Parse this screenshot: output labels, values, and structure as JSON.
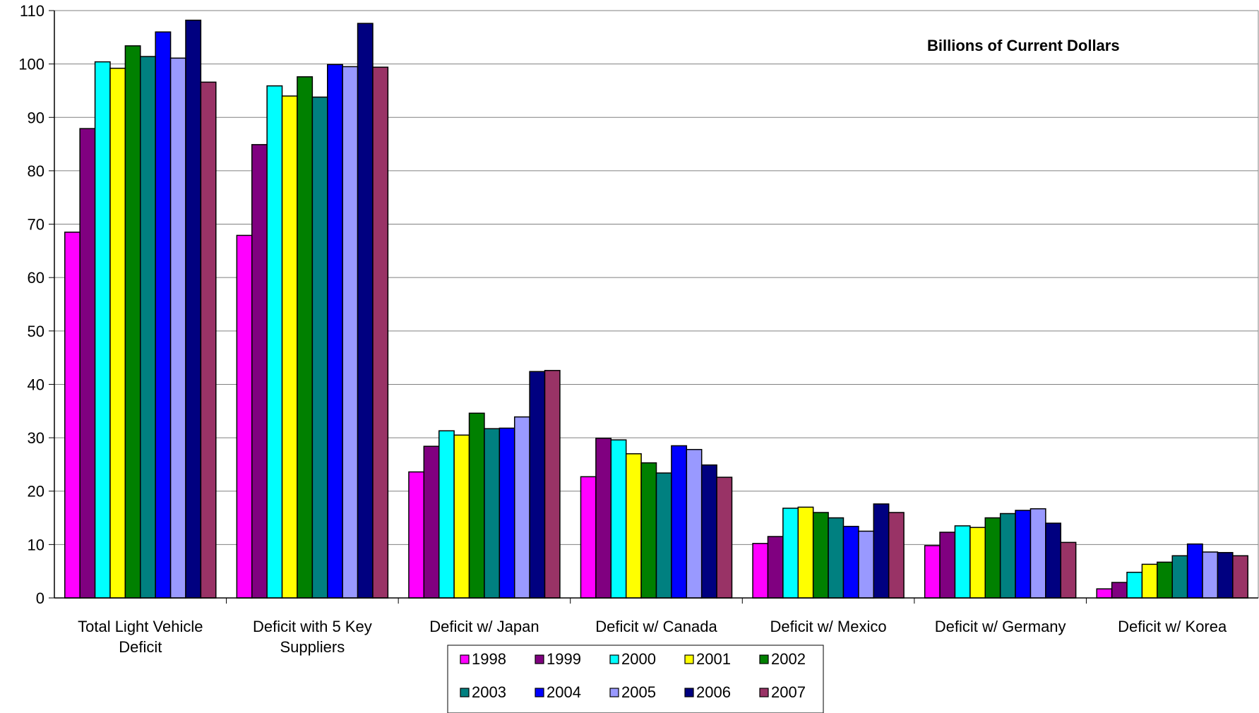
{
  "chart_data": {
    "type": "bar",
    "title": "",
    "annotation": "Billions of Current Dollars",
    "xlabel": "",
    "ylabel": "",
    "ylim": [
      0,
      110
    ],
    "yticks": [
      0,
      10,
      20,
      30,
      40,
      50,
      60,
      70,
      80,
      90,
      100,
      110
    ],
    "grid": true,
    "legend_position": "bottom-center",
    "categories": [
      [
        "Total Light Vehicle",
        "Deficit"
      ],
      [
        "Deficit with 5 Key",
        "Suppliers"
      ],
      [
        "Deficit w/ Japan"
      ],
      [
        "Deficit w/ Canada"
      ],
      [
        "Deficit w/ Mexico"
      ],
      [
        "Deficit w/ Germany"
      ],
      [
        "Deficit w/ Korea"
      ]
    ],
    "series": [
      {
        "name": "1998",
        "color": "#ff00ff",
        "values": [
          68.5,
          67.9,
          23.6,
          22.7,
          10.2,
          9.8,
          1.7
        ]
      },
      {
        "name": "1999",
        "color": "#800080",
        "values": [
          87.9,
          84.9,
          28.4,
          29.9,
          11.5,
          12.3,
          2.9
        ]
      },
      {
        "name": "2000",
        "color": "#00ffff",
        "values": [
          100.4,
          95.9,
          31.3,
          29.6,
          16.8,
          13.5,
          4.8
        ]
      },
      {
        "name": "2001",
        "color": "#ffff00",
        "values": [
          99.2,
          94.0,
          30.5,
          27.0,
          17.0,
          13.2,
          6.3
        ]
      },
      {
        "name": "2002",
        "color": "#008000",
        "values": [
          103.4,
          97.6,
          34.6,
          25.3,
          16.0,
          15.0,
          6.7
        ]
      },
      {
        "name": "2003",
        "color": "#008080",
        "values": [
          101.4,
          93.8,
          31.7,
          23.4,
          15.0,
          15.8,
          7.9
        ]
      },
      {
        "name": "2004",
        "color": "#0000ff",
        "values": [
          106.0,
          99.9,
          31.8,
          28.5,
          13.4,
          16.4,
          10.1
        ]
      },
      {
        "name": "2005",
        "color": "#9999ff",
        "values": [
          101.1,
          99.5,
          33.9,
          27.8,
          12.5,
          16.7,
          8.6
        ]
      },
      {
        "name": "2006",
        "color": "#000080",
        "values": [
          108.2,
          107.6,
          42.4,
          24.9,
          17.6,
          14.0,
          8.5
        ]
      },
      {
        "name": "2007",
        "color": "#993366",
        "values": [
          96.6,
          99.4,
          42.6,
          22.6,
          16.0,
          10.4,
          7.9
        ]
      }
    ]
  }
}
